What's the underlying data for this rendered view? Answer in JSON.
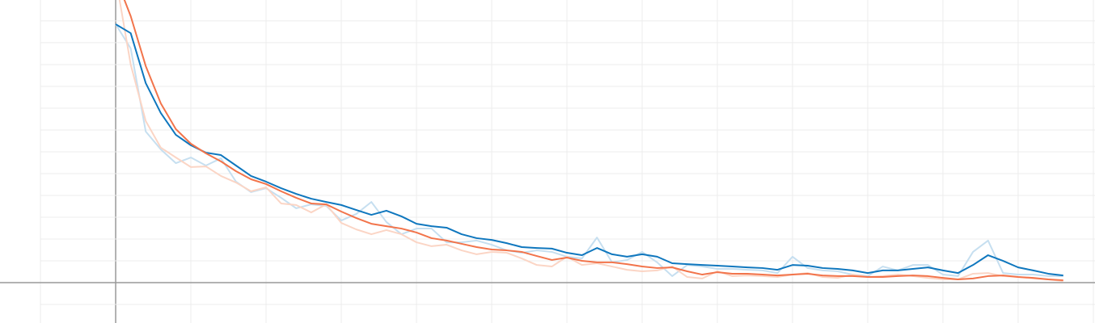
{
  "chart_data": {
    "type": "line",
    "x": [
      0,
      1,
      2,
      3,
      4,
      5,
      6,
      7,
      8,
      9,
      10,
      11,
      12,
      13,
      14,
      15,
      16,
      17,
      18,
      19,
      20,
      21,
      22,
      23,
      24,
      25,
      26,
      27,
      28,
      29,
      30,
      31,
      32,
      33,
      34,
      35,
      36,
      37,
      38,
      39,
      40,
      41,
      42,
      43,
      44,
      45,
      46,
      47,
      48,
      49,
      50,
      51,
      52,
      53,
      54,
      55,
      56,
      57,
      58,
      59,
      60,
      61,
      62,
      63
    ],
    "series": [
      {
        "color": "#c6dff0",
        "values": [
          11.85,
          10.74,
          6.93,
          6.11,
          5.48,
          5.74,
          5.37,
          5.7,
          4.63,
          4.15,
          4.33,
          3.89,
          3.41,
          3.59,
          3.52,
          2.85,
          3.15,
          3.7,
          2.78,
          2.22,
          2.48,
          2.48,
          1.85,
          1.85,
          1.93,
          1.74,
          1.48,
          1.37,
          1.48,
          1.41,
          1.19,
          1.11,
          2.07,
          0.93,
          1.04,
          1.41,
          0.93,
          0.3,
          0.81,
          0.74,
          0.63,
          0.63,
          0.59,
          0.56,
          0.44,
          1.19,
          0.67,
          0.56,
          0.52,
          0.37,
          0.3,
          0.74,
          0.56,
          0.81,
          0.81,
          0.37,
          0.3,
          1.41,
          1.93,
          0.44,
          0.37,
          0.37,
          0.3,
          0.3
        ]
      },
      {
        "color": "#fbd5c5",
        "values": [
          14.0,
          10.0,
          7.41,
          6.19,
          5.74,
          5.3,
          5.33,
          4.89,
          4.59,
          4.19,
          4.37,
          3.63,
          3.56,
          3.22,
          3.59,
          2.74,
          2.44,
          2.22,
          2.41,
          2.22,
          1.85,
          1.67,
          1.74,
          1.48,
          1.3,
          1.41,
          1.37,
          1.11,
          0.81,
          0.74,
          1.19,
          0.81,
          0.89,
          0.74,
          0.59,
          0.52,
          0.56,
          0.74,
          0.26,
          0.19,
          0.52,
          0.3,
          0.33,
          0.3,
          0.26,
          0.37,
          0.44,
          0.26,
          0.22,
          0.37,
          0.26,
          0.3,
          0.37,
          0.3,
          0.22,
          0.15,
          0.15,
          0.41,
          0.44,
          0.3,
          0.26,
          0.19,
          0.15,
          0.07
        ]
      },
      {
        "color": "#0f77be",
        "values": [
          11.85,
          11.44,
          9.15,
          7.78,
          6.78,
          6.3,
          5.96,
          5.85,
          5.37,
          4.89,
          4.63,
          4.33,
          4.07,
          3.85,
          3.7,
          3.56,
          3.33,
          3.11,
          3.3,
          3.04,
          2.7,
          2.59,
          2.52,
          2.22,
          2.04,
          1.96,
          1.81,
          1.63,
          1.59,
          1.56,
          1.37,
          1.26,
          1.59,
          1.3,
          1.19,
          1.3,
          1.19,
          0.89,
          0.85,
          0.81,
          0.78,
          0.74,
          0.7,
          0.67,
          0.59,
          0.81,
          0.78,
          0.67,
          0.63,
          0.56,
          0.44,
          0.56,
          0.56,
          0.63,
          0.7,
          0.56,
          0.44,
          0.81,
          1.26,
          1.0,
          0.7,
          0.56,
          0.41,
          0.33
        ]
      },
      {
        "color": "#f2744b",
        "values": [
          14.0,
          12.22,
          9.93,
          8.22,
          7.04,
          6.37,
          5.93,
          5.56,
          5.11,
          4.74,
          4.52,
          4.19,
          3.89,
          3.63,
          3.59,
          3.26,
          2.96,
          2.7,
          2.59,
          2.48,
          2.3,
          2.04,
          1.93,
          1.78,
          1.63,
          1.52,
          1.48,
          1.41,
          1.22,
          1.04,
          1.15,
          1.0,
          0.93,
          0.93,
          0.85,
          0.74,
          0.67,
          0.7,
          0.52,
          0.37,
          0.48,
          0.41,
          0.41,
          0.37,
          0.33,
          0.37,
          0.41,
          0.33,
          0.3,
          0.3,
          0.26,
          0.26,
          0.3,
          0.33,
          0.3,
          0.22,
          0.15,
          0.19,
          0.3,
          0.33,
          0.26,
          0.22,
          0.15,
          0.11
        ]
      }
    ],
    "xlim": [
      -7.69,
      65.11
    ],
    "xticks": [
      -5,
      0,
      5,
      10,
      15,
      20,
      25,
      30,
      35,
      40,
      45,
      50,
      55,
      60,
      65
    ],
    "ylim": [
      -1.85,
      12.96
    ],
    "yticks": [
      -1,
      0,
      1,
      2,
      3,
      4,
      5,
      6,
      7,
      8,
      9,
      10,
      11,
      12
    ],
    "grid": true
  }
}
